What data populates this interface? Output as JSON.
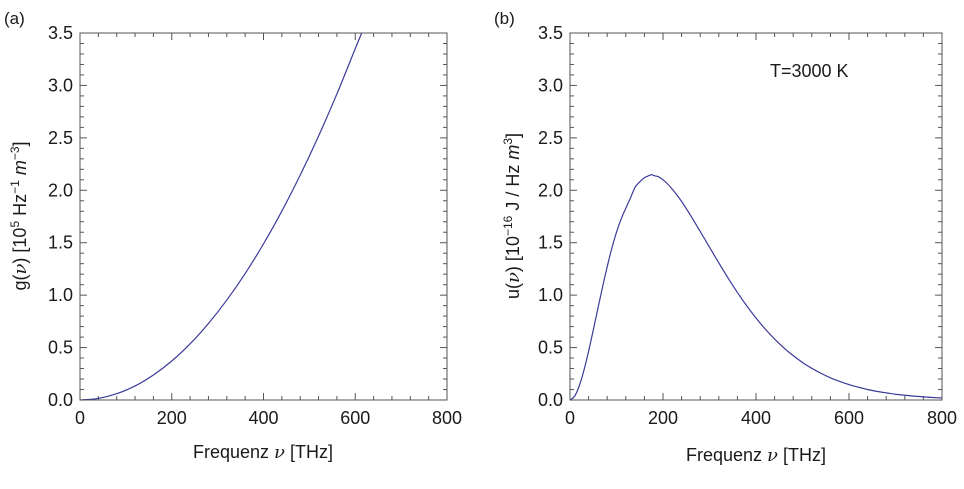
{
  "chart_data": [
    {
      "type": "line",
      "panel_label": "(a)",
      "xlabel": "Frequenz ν [THz]",
      "ylabel": "g(ν) [10⁵ Hz⁻¹ m⁻³]",
      "xlim": [
        0,
        800
      ],
      "ylim": [
        0,
        3.5
      ],
      "xticks": [
        "0",
        "200",
        "400",
        "600",
        "800"
      ],
      "yticks": [
        "0.0",
        "0.5",
        "1.0",
        "1.5",
        "2.0",
        "2.5",
        "3.0",
        "3.5"
      ],
      "grid": false,
      "series": [
        {
          "color": "#3b3b9a",
          "x": [
            0,
            40,
            80,
            120,
            160,
            200,
            240,
            280,
            320,
            360,
            400,
            440,
            480,
            520,
            560,
            600,
            614
          ],
          "y": [
            0,
            0.015,
            0.06,
            0.134,
            0.238,
            0.372,
            0.536,
            0.73,
            0.953,
            1.206,
            1.489,
            1.802,
            2.145,
            2.517,
            2.919,
            3.351,
            3.5
          ]
        }
      ]
    },
    {
      "type": "line",
      "panel_label": "(b)",
      "xlabel": "Frequenz ν [THz]",
      "ylabel": "u(ν) [10⁻¹⁶ J / Hz m³]",
      "xlim": [
        0,
        800
      ],
      "ylim": [
        0,
        3.5
      ],
      "xticks": [
        "0",
        "200",
        "400",
        "600",
        "800"
      ],
      "yticks": [
        "0.0",
        "0.5",
        "1.0",
        "1.5",
        "2.0",
        "2.5",
        "3.0",
        "3.5"
      ],
      "annotation": "T=3000 K",
      "grid": false,
      "series": [
        {
          "color": "#3b3b9a",
          "x": [
            0,
            10,
            20,
            30,
            40,
            50,
            60,
            70,
            80,
            90,
            100,
            110,
            120,
            130,
            140,
            150,
            160,
            170,
            176,
            180,
            190,
            200,
            210,
            220,
            230,
            240,
            250,
            260,
            270,
            280,
            290,
            300,
            320,
            340,
            360,
            380,
            400,
            420,
            440,
            460,
            480,
            500,
            520,
            540,
            560,
            580,
            600,
            620,
            640,
            660,
            680,
            700,
            720,
            740,
            760,
            780,
            800
          ],
          "y": [
            0,
            0.037,
            0.136,
            0.284,
            0.465,
            0.666,
            0.874,
            1.078,
            1.271,
            1.447,
            1.6,
            1.727,
            1.829,
            1.926,
            2.03,
            2.08,
            2.12,
            2.14,
            2.15,
            2.14,
            2.13,
            2.1,
            2.06,
            2.01,
            1.955,
            1.893,
            1.826,
            1.755,
            1.682,
            1.608,
            1.533,
            1.457,
            1.308,
            1.163,
            1.026,
            0.899,
            0.782,
            0.676,
            0.581,
            0.497,
            0.423,
            0.358,
            0.302,
            0.254,
            0.212,
            0.177,
            0.147,
            0.122,
            0.1,
            0.082,
            0.068,
            0.055,
            0.045,
            0.037,
            0.03,
            0.024,
            0.019
          ]
        }
      ]
    }
  ]
}
